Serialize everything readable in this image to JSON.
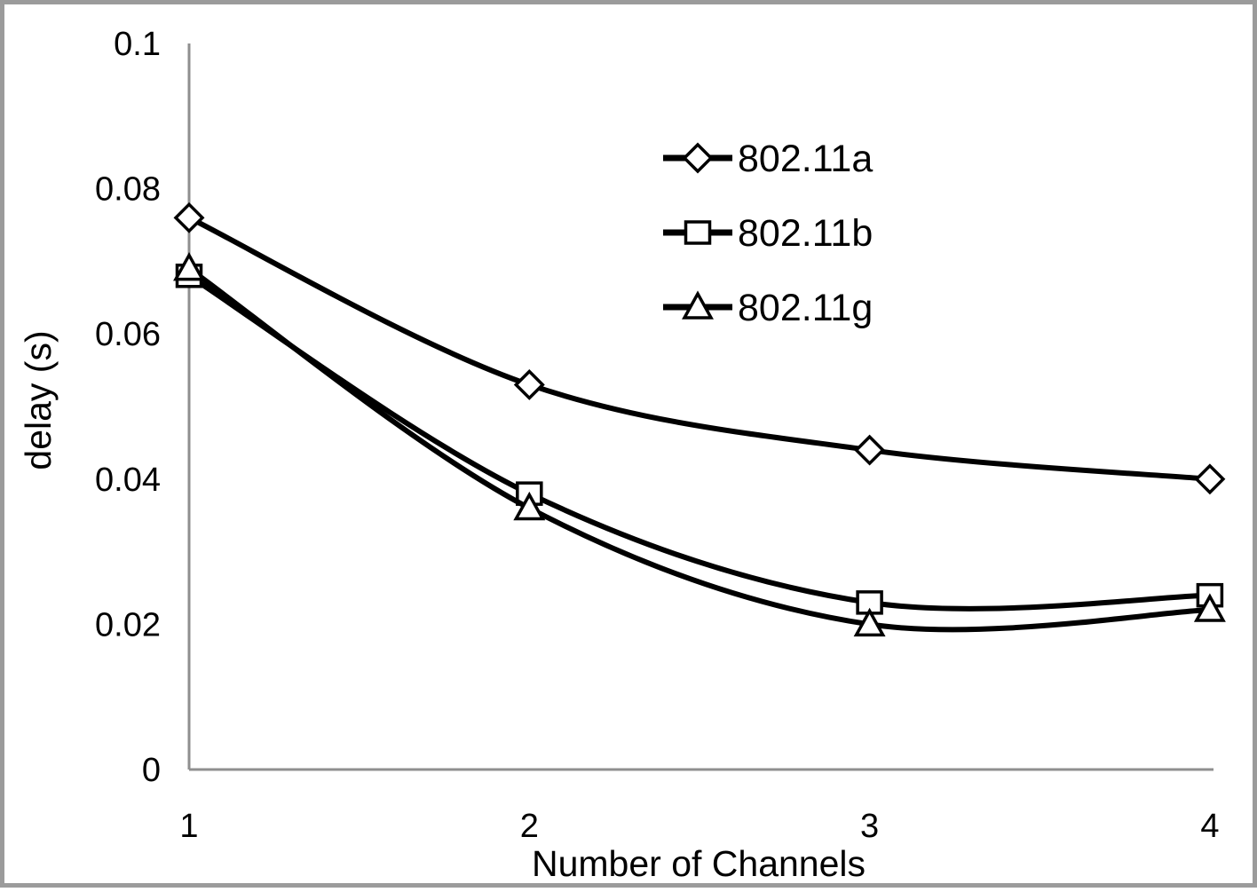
{
  "chart_data": {
    "type": "line",
    "title": "",
    "xlabel": "Number of Channels",
    "ylabel": "delay (s)",
    "x": [
      1,
      2,
      3,
      4
    ],
    "xlim": [
      1,
      4
    ],
    "ylim": [
      0,
      0.1
    ],
    "xtick_labels": [
      "1",
      "2",
      "3",
      "4"
    ],
    "ytick_values": [
      0,
      0.02,
      0.04,
      0.06,
      0.08,
      0.1
    ],
    "ytick_labels": [
      "0",
      "0.02",
      "0.04",
      "0.06",
      "0.08",
      "0.1"
    ],
    "grid": false,
    "legend_position": "upper-center",
    "line_smoothing": true,
    "colors": {
      "line": "#000000",
      "marker_fill": "#ffffff",
      "axis": "#8f8f8f",
      "text": "#000000",
      "frame_border": "#9b9b9b",
      "background": "#ffffff"
    },
    "series": [
      {
        "name": "802.11a",
        "marker": "diamond",
        "values": [
          0.076,
          0.053,
          0.044,
          0.04
        ]
      },
      {
        "name": "802.11b",
        "marker": "square",
        "values": [
          0.068,
          0.038,
          0.023,
          0.024
        ]
      },
      {
        "name": "802.11g",
        "marker": "triangle",
        "values": [
          0.069,
          0.036,
          0.02,
          0.022
        ]
      }
    ]
  }
}
